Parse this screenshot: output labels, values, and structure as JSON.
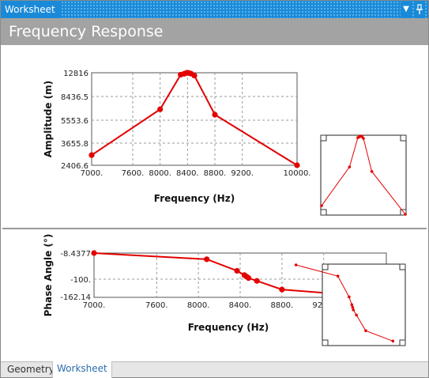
{
  "window": {
    "title": "Worksheet",
    "dropdown_icon": "▼",
    "pin_icon": "pin-icon"
  },
  "header": {
    "title": "Frequency Response"
  },
  "tabs": [
    {
      "label": "Geometry"
    },
    {
      "label": "Worksheet"
    }
  ],
  "chart_data": [
    {
      "type": "line",
      "xlabel": "Frequency (Hz)",
      "ylabel": "Amplitude (m)",
      "xlim": [
        7000,
        10000
      ],
      "ylim": [
        2406.6,
        12816
      ],
      "x_ticks": [
        "7000.",
        "7600.",
        "8000.",
        "8400.",
        "8800.",
        "9200.",
        "10000."
      ],
      "x_tick_values": [
        7000,
        7600,
        8000,
        8400,
        8800,
        9200,
        10000
      ],
      "y_ticks": [
        "12816",
        "8436.5",
        "5553.6",
        "3655.8",
        "2406.6"
      ],
      "grid": true,
      "color": "#e30000",
      "x": [
        7000,
        8000,
        8300,
        8350,
        8380,
        8400,
        8420,
        8450,
        8500,
        8800,
        10000
      ],
      "y": [
        3550,
        8700,
        12600,
        12700,
        12780,
        12816,
        12790,
        12720,
        12500,
        8100,
        2406.6
      ]
    },
    {
      "type": "line",
      "xlabel": "Frequency (Hz)",
      "ylabel": "Phase Angle (°)",
      "xlim": [
        7000,
        9800
      ],
      "ylim": [
        -162.14,
        -8.4377
      ],
      "x_ticks": [
        "7000.",
        "7600.",
        "8000.",
        "8400.",
        "8800.",
        "9200."
      ],
      "x_tick_values": [
        7000,
        7600,
        8000,
        8400,
        8800,
        9200
      ],
      "y_ticks": [
        "-8.4377",
        "-100.",
        "-162.14"
      ],
      "grid": true,
      "color": "#e30000",
      "x": [
        7000,
        8080,
        8370,
        8440,
        8460,
        8480,
        8560,
        8800,
        9500
      ],
      "y": [
        -8.4377,
        -30,
        -70,
        -85,
        -90,
        -95,
        -105,
        -135,
        -155
      ]
    }
  ]
}
